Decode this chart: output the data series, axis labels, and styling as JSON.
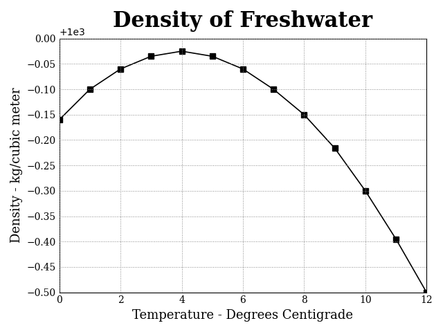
{
  "title": "Density of Freshwater",
  "xlabel": "Temperature - Degrees Centigrade",
  "ylabel": "Density - kg/cubic meter",
  "x": [
    0,
    1,
    2,
    3,
    4,
    5,
    6,
    7,
    8,
    9,
    10,
    11,
    12
  ],
  "y": [
    999.84,
    999.9,
    999.94,
    999.965,
    999.975,
    999.965,
    999.94,
    999.9,
    999.85,
    999.784,
    999.7,
    999.605,
    999.5
  ],
  "xlim": [
    0,
    12
  ],
  "ylim": [
    999.5,
    1000.0
  ],
  "ytick_step": 0.05,
  "xtick_step": 2,
  "line_color": "#000000",
  "marker": "s",
  "marker_size": 6,
  "marker_color": "#000000",
  "grid_color": "#888888",
  "grid_style": "dotted",
  "background_color": "#ffffff",
  "title_fontsize": 22,
  "label_fontsize": 13
}
